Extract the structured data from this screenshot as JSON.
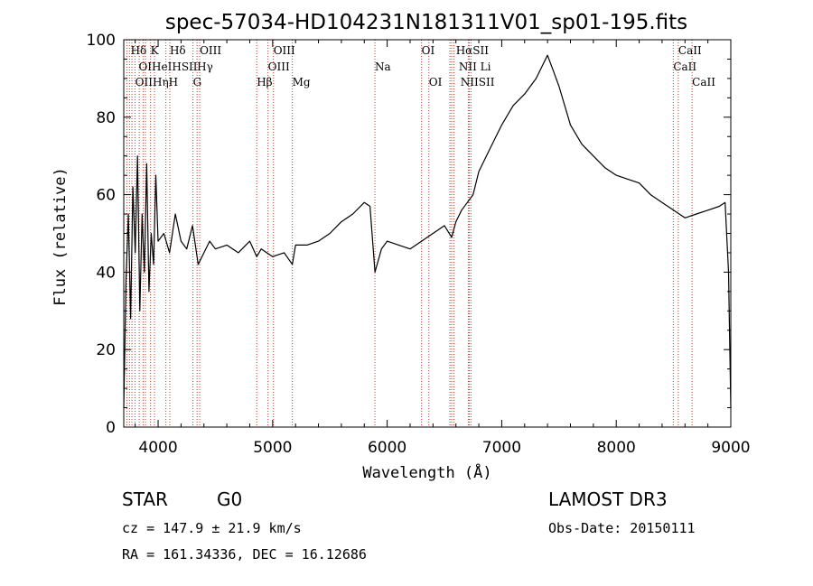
{
  "chart_data": {
    "type": "line",
    "title": "spec-57034-HD104231N181311V01_sp01-195.fits",
    "xlabel": "Wavelength (Å)",
    "ylabel": "Flux (relative)",
    "xlim": [
      3700,
      9000
    ],
    "ylim": [
      0,
      100
    ],
    "x_ticks": [
      4000,
      5000,
      6000,
      7000,
      8000,
      9000
    ],
    "y_ticks": [
      0,
      20,
      40,
      60,
      80,
      100
    ],
    "x_tick_labels": [
      "4000",
      "5000",
      "6000",
      "7000",
      "8000",
      "9000"
    ],
    "y_tick_labels": [
      "0",
      "20",
      "40",
      "60",
      "80",
      "100"
    ],
    "grid": false,
    "series": [
      {
        "name": "flux",
        "color": "#000000",
        "x": [
          3700,
          3720,
          3740,
          3760,
          3780,
          3800,
          3820,
          3840,
          3860,
          3880,
          3900,
          3920,
          3940,
          3960,
          3980,
          4000,
          4050,
          4100,
          4150,
          4200,
          4250,
          4300,
          4350,
          4400,
          4450,
          4500,
          4600,
          4700,
          4800,
          4861,
          4900,
          5000,
          5100,
          5172,
          5200,
          5300,
          5400,
          5500,
          5600,
          5700,
          5800,
          5850,
          5893,
          5950,
          6000,
          6100,
          6200,
          6300,
          6400,
          6500,
          6563,
          6600,
          6650,
          6700,
          6750,
          6800,
          6900,
          7000,
          7100,
          7200,
          7300,
          7350,
          7400,
          7450,
          7500,
          7600,
          7700,
          7800,
          7900,
          8000,
          8100,
          8200,
          8300,
          8400,
          8500,
          8600,
          8700,
          8800,
          8900,
          8950,
          8980,
          9000
        ],
        "y": [
          5,
          38,
          55,
          28,
          62,
          45,
          70,
          30,
          55,
          40,
          68,
          35,
          50,
          42,
          65,
          48,
          50,
          45,
          55,
          48,
          46,
          52,
          42,
          45,
          48,
          46,
          47,
          45,
          48,
          44,
          46,
          44,
          45,
          42,
          47,
          47,
          48,
          50,
          53,
          55,
          58,
          57,
          40,
          46,
          48,
          47,
          46,
          48,
          50,
          52,
          49,
          53,
          56,
          58,
          60,
          66,
          72,
          78,
          83,
          86,
          90,
          93,
          96,
          92,
          88,
          78,
          73,
          70,
          67,
          65,
          64,
          63,
          60,
          58,
          56,
          54,
          55,
          56,
          57,
          58,
          40,
          5
        ]
      }
    ],
    "spectral_lines": [
      {
        "label": "Hδ",
        "wavelength": 3760,
        "row": 0
      },
      {
        "label": "K",
        "wavelength": 3934,
        "row": 0
      },
      {
        "label": "Hδ",
        "wavelength": 4102,
        "row": 0
      },
      {
        "label": "OIII",
        "wavelength": 4363,
        "row": 0
      },
      {
        "label": "OIII",
        "wavelength": 5007,
        "row": 0
      },
      {
        "label": "OI",
        "wavelength": 6300,
        "row": 0
      },
      {
        "label": "HαSII",
        "wavelength": 6600,
        "row": 0
      },
      {
        "label": "CaII",
        "wavelength": 8542,
        "row": 0
      },
      {
        "label": "OIHeIHSII",
        "wavelength": 3830,
        "row": 1
      },
      {
        "label": "Hγ",
        "wavelength": 4340,
        "row": 1
      },
      {
        "label": "OIII",
        "wavelength": 4959,
        "row": 1
      },
      {
        "label": "Na",
        "wavelength": 5893,
        "row": 1
      },
      {
        "label": "NII Li",
        "wavelength": 6625,
        "row": 1
      },
      {
        "label": "CaII",
        "wavelength": 8498,
        "row": 1
      },
      {
        "label": "OIIHηH",
        "wavelength": 3800,
        "row": 2
      },
      {
        "label": "G",
        "wavelength": 4304,
        "row": 2
      },
      {
        "label": "Hβ",
        "wavelength": 4861,
        "row": 2
      },
      {
        "label": "Mg",
        "wavelength": 5172,
        "row": 2
      },
      {
        "label": "OI",
        "wavelength": 6364,
        "row": 2
      },
      {
        "label": "NIISII",
        "wavelength": 6640,
        "row": 2
      },
      {
        "label": "CaII",
        "wavelength": 8662,
        "row": 2
      }
    ],
    "line_marker_wavelengths": [
      3727,
      3750,
      3771,
      3798,
      3835,
      3869,
      3889,
      3934,
      3968,
      4068,
      4102,
      4304,
      4340,
      4363,
      4861,
      4959,
      5007,
      5172,
      5893,
      6300,
      6364,
      6548,
      6563,
      6583,
      6708,
      6716,
      6731,
      8498,
      8542,
      8662
    ],
    "line_marker_color": "#c0392b"
  },
  "info": {
    "object_class": "STAR",
    "subclass": "G0",
    "survey": "LAMOST DR3",
    "velocity": "cz = 147.9 ± 21.9 km/s",
    "obs_date": "Obs-Date: 20150111",
    "coords": "RA = 161.34336, DEC =  16.12686"
  }
}
